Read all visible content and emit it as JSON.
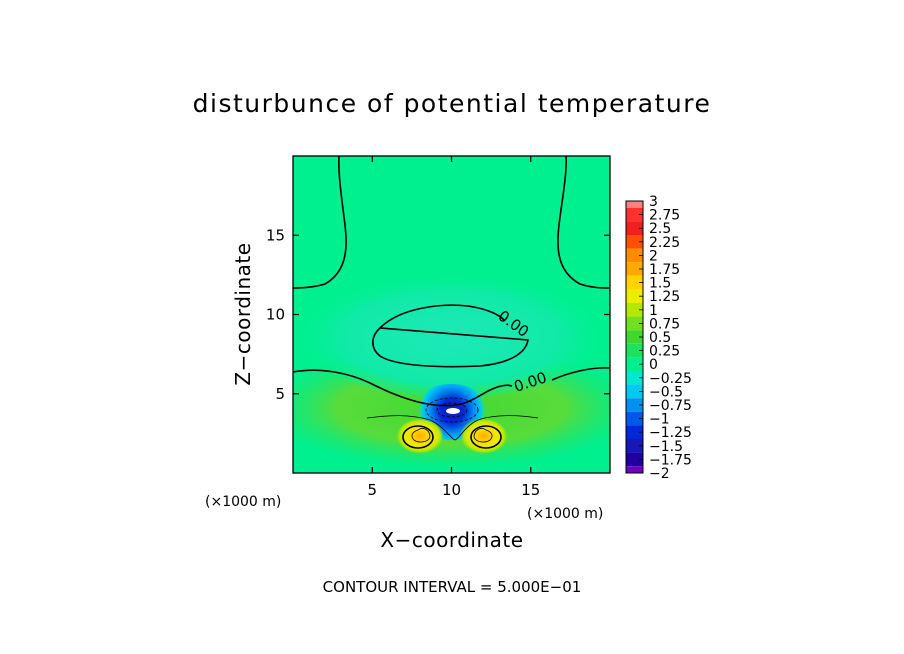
{
  "chart_data": {
    "type": "heatmap",
    "title": "disturbunce of potential temperature",
    "xlabel": "X−coordinate",
    "ylabel": "Z−coordinate",
    "x_unit": "(×1000 m)",
    "y_unit": "(×1000 m)",
    "xlim": [
      0,
      20
    ],
    "ylim": [
      0,
      20
    ],
    "x_ticks": [
      5,
      10,
      15
    ],
    "y_ticks": [
      5,
      10,
      15
    ],
    "x_tick_labels": [
      "5",
      "10",
      "15"
    ],
    "y_tick_labels": [
      "5",
      "10",
      "15"
    ],
    "contour_labels": [
      "0.00",
      "0.00"
    ],
    "footer": "CONTOUR INTERVAL = 5.000E−01",
    "colorbar": {
      "min": -2,
      "max": 3,
      "labels": [
        "3",
        "2.75",
        "2.5",
        "2.25",
        "2",
        "1.75",
        "1.5",
        "1.25",
        "1",
        "0.75",
        "0.5",
        "0.25",
        "0",
        "−0.25",
        "−0.5",
        "−0.75",
        "−1",
        "−1.25",
        "−1.5",
        "−1.75",
        "−2"
      ],
      "colors": [
        "#ff8080",
        "#ff3030",
        "#f02020",
        "#ff5000",
        "#ff8c00",
        "#ffa800",
        "#ffd200",
        "#ecec00",
        "#b4e800",
        "#70e020",
        "#40d830",
        "#20e060",
        "#00f090",
        "#00e8d0",
        "#00c8f0",
        "#0090f0",
        "#0058e8",
        "#0028d8",
        "#1818b8",
        "#2000a0",
        "#7000c0"
      ]
    },
    "features": [
      {
        "kind": "negative-minimum",
        "x": 10,
        "z": 4,
        "min_value": -2
      },
      {
        "kind": "positive-maximum",
        "x": 7.7,
        "z": 2.3,
        "max_value": 1.75
      },
      {
        "kind": "positive-maximum",
        "x": 12.3,
        "z": 2.3,
        "max_value": 1.75
      }
    ]
  }
}
